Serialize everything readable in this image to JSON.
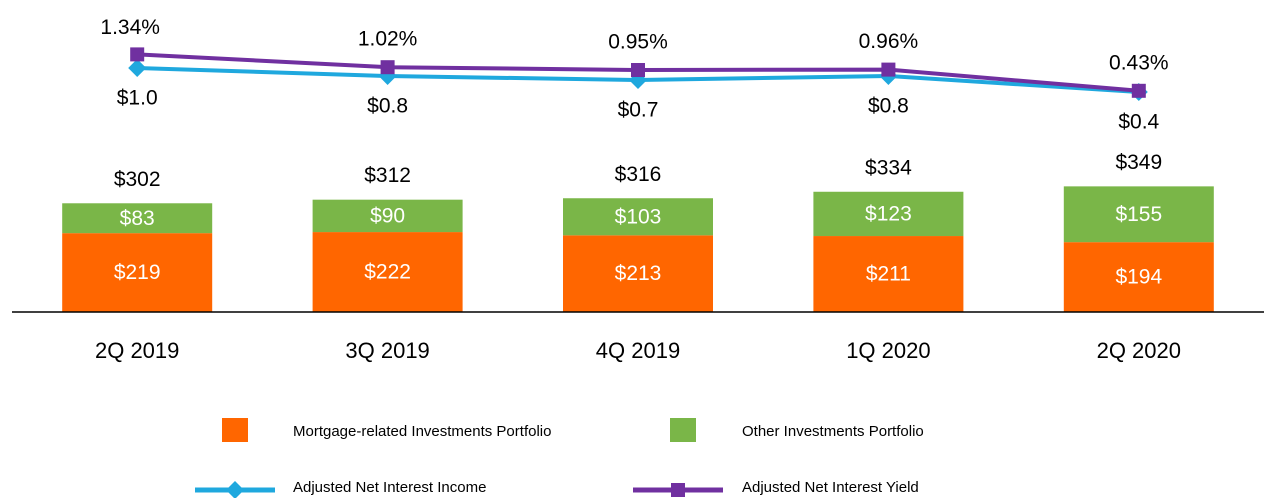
{
  "chart_data": {
    "type": "bar",
    "stacked": true,
    "categories": [
      "2Q 2019",
      "3Q 2019",
      "4Q 2019",
      "1Q 2020",
      "2Q 2020"
    ],
    "series": [
      {
        "name": "Mortgage-related Investments Portfolio",
        "color": "#ff6600",
        "values": [
          219,
          222,
          213,
          211,
          194
        ],
        "value_labels": [
          "$219",
          "$222",
          "$213",
          "$211",
          "$194"
        ]
      },
      {
        "name": "Other Investments Portfolio",
        "color": "#7ab648",
        "values": [
          83,
          90,
          103,
          123,
          155
        ],
        "value_labels": [
          "$83",
          "$90",
          "$103",
          "$123",
          "$155"
        ]
      },
      {
        "name": "Adjusted Net Interest Income",
        "type": "line",
        "marker": "diamond",
        "axis": "y2",
        "color": "#1fa8de",
        "values": [
          1.0,
          0.8,
          0.7,
          0.8,
          0.4
        ],
        "value_labels": [
          "$1.0",
          "$0.8",
          "$0.7",
          "$0.8",
          "$0.4"
        ],
        "label_position": "below"
      },
      {
        "name": "Adjusted Net Interest Yield",
        "type": "line",
        "marker": "square",
        "axis": "y2",
        "color": "#7030a0",
        "values": [
          1.34,
          1.02,
          0.95,
          0.96,
          0.43
        ],
        "value_labels": [
          "1.34%",
          "1.02%",
          "0.95%",
          "0.96%",
          "0.43%"
        ],
        "label_position": "above"
      }
    ],
    "totals": [
      302,
      312,
      316,
      334,
      349
    ],
    "total_labels": [
      "$302",
      "$312",
      "$316",
      "$334",
      "$349"
    ],
    "ylim": [
      0,
      400
    ],
    "y2lim": [
      0,
      2
    ],
    "legend": "bottom"
  }
}
